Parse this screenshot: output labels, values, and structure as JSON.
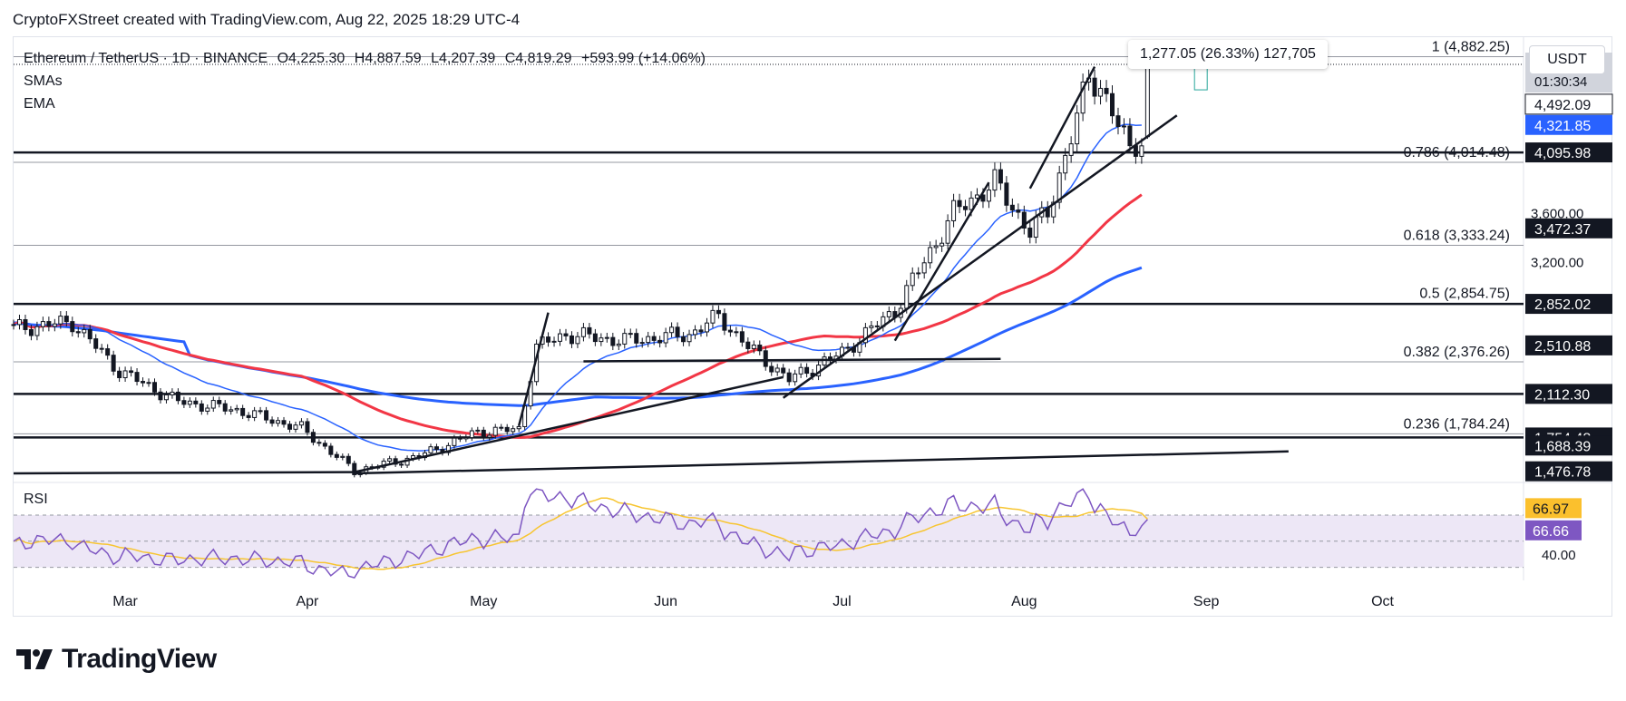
{
  "credit": "CryptoFXStreet created with TradingView.com, Aug 22, 2025 18:29 UTC-4",
  "legend": {
    "symbol": "Ethereum / TetherUS · 1D · BINANCE",
    "ohlc": [
      {
        "key": "O",
        "value": "4,225.30"
      },
      {
        "key": "H",
        "value": "4,887.59"
      },
      {
        "key": "L",
        "value": "4,207.39"
      },
      {
        "key": "C",
        "value": "4,819.29"
      }
    ],
    "change": "+593.99 (+14.06%)",
    "indicators": [
      "SMAs",
      "EMA"
    ]
  },
  "measure_label": "1,277.05 (26.33%) 127,705",
  "currency_button": "USDT",
  "rsi_label": "RSI",
  "brand": "TradingView",
  "colors": {
    "up": "#131722",
    "down": "#131722",
    "ema": "#2962ff",
    "sma50": "#f23645",
    "sma100": "#2962ff",
    "rsi": "#7e57c2",
    "rsi_ma": "#f7c531",
    "rsi_band": "#ede7f6",
    "current_price_bg": "#d1d4dc",
    "blue_label_bg": "#2962ff",
    "black_label_bg": "#131722",
    "rsi_badge_yellow": "#fbc02d",
    "rsi_badge_purple": "#7e57c2"
  },
  "price_axis": {
    "labels": [
      {
        "value": 3600,
        "text": "3,600.00"
      },
      {
        "value": 3200,
        "text": "3,200.00"
      }
    ],
    "current": {
      "price": 4819.29,
      "text": "4,819.29",
      "countdown": "01:30:34"
    },
    "badges": [
      {
        "price": 4492.09,
        "text": "4,492.09",
        "style": "outline"
      },
      {
        "price": 4321.85,
        "text": "4,321.85",
        "style": "blue"
      },
      {
        "price": 4095.98,
        "text": "4,095.98",
        "style": "black"
      },
      {
        "price": 3472.37,
        "text": "3,472.37",
        "style": "black"
      },
      {
        "price": 2852.02,
        "text": "2,852.02",
        "style": "black"
      },
      {
        "price": 2510.88,
        "text": "2,510.88",
        "style": "black"
      },
      {
        "price": 2112.3,
        "text": "2,112.30",
        "style": "black"
      },
      {
        "price": 1754.48,
        "text": "1,754.48",
        "style": "black"
      },
      {
        "price": 1688.39,
        "text": "1,688.39",
        "style": "black"
      },
      {
        "price": 1476.78,
        "text": "1,476.78",
        "style": "black"
      }
    ]
  },
  "rsi_axis": {
    "label_40": "40.00",
    "badges": [
      {
        "value": 66.97,
        "text": "66.97",
        "style": "yellow"
      },
      {
        "value": 66.66,
        "text": "66.66",
        "style": "purple"
      }
    ]
  },
  "fib_levels": [
    {
      "ratio": "1",
      "price": 4882.25,
      "text": "1 (4,882.25)"
    },
    {
      "ratio": "0.786",
      "price": 4014.48,
      "text": "0.786 (4,014.48)"
    },
    {
      "ratio": "0.618",
      "price": 3333.24,
      "text": "0.618 (3,333.24)"
    },
    {
      "ratio": "0.5",
      "price": 2854.75,
      "text": "0.5 (2,854.75)"
    },
    {
      "ratio": "0.382",
      "price": 2376.26,
      "text": "0.382 (2,376.26)"
    },
    {
      "ratio": "0.236",
      "price": 1784.24,
      "text": "0.236 (1,784.24)"
    }
  ],
  "horizontal_levels": [
    4095.98,
    2852.02,
    2112.3,
    1754.48
  ],
  "x_axis": [
    "Mar",
    "Apr",
    "May",
    "Jun",
    "Jul",
    "Aug",
    "Sep",
    "Oct"
  ],
  "chart_data": {
    "type": "candlestick",
    "title": "Ethereum / TetherUS · 1D · BINANCE",
    "x_range": [
      "2025-02-10",
      "2025-10-25"
    ],
    "y_range": [
      1400,
      5050
    ],
    "last_candle": {
      "date": "2025-08-22",
      "open": 4225.3,
      "high": 4887.59,
      "low": 4207.39,
      "close": 4819.29
    },
    "closes_anchor": [
      [
        "2025-02-10",
        2650
      ],
      [
        "2025-02-20",
        2700
      ],
      [
        "2025-02-28",
        2300
      ],
      [
        "2025-03-10",
        2050
      ],
      [
        "2025-03-20",
        1980
      ],
      [
        "2025-03-31",
        1830
      ],
      [
        "2025-04-09",
        1480
      ],
      [
        "2025-04-20",
        1600
      ],
      [
        "2025-04-30",
        1800
      ],
      [
        "2025-05-07",
        1820
      ],
      [
        "2025-05-10",
        2500
      ],
      [
        "2025-05-15",
        2600
      ],
      [
        "2025-05-25",
        2550
      ],
      [
        "2025-06-05",
        2600
      ],
      [
        "2025-06-10",
        2750
      ],
      [
        "2025-06-15",
        2500
      ],
      [
        "2025-06-22",
        2230
      ],
      [
        "2025-07-01",
        2450
      ],
      [
        "2025-07-10",
        2800
      ],
      [
        "2025-07-20",
        3600
      ],
      [
        "2025-07-27",
        3850
      ],
      [
        "2025-08-02",
        3450
      ],
      [
        "2025-08-05",
        3600
      ],
      [
        "2025-08-12",
        4700
      ],
      [
        "2025-08-14",
        4650
      ],
      [
        "2025-08-19",
        4100
      ],
      [
        "2025-08-21",
        4225
      ],
      [
        "2025-08-22",
        4819
      ]
    ],
    "ema_end": 4321.85,
    "sma50_end": 3750,
    "sma100_end": 3150,
    "rsi": {
      "range": [
        20,
        95
      ],
      "band": [
        30,
        70
      ],
      "last": 66.66,
      "ma_last": 66.97
    }
  }
}
